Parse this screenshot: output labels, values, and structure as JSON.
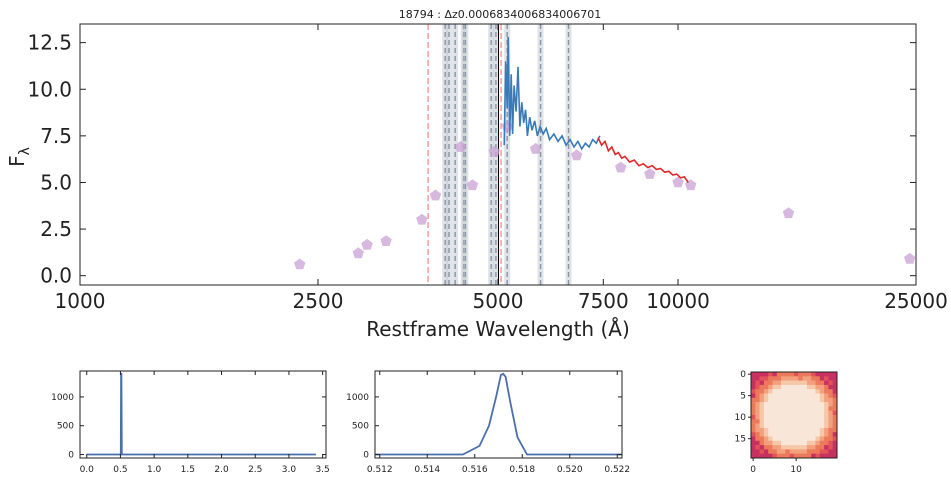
{
  "colors": {
    "spectrum": "#3a7ab8",
    "model": "#e02828",
    "photometry": "#c9a2d4",
    "line_gray": "#b8c0cc",
    "line_red": "#ff9a9a",
    "line_black": "#000000",
    "small_plot": "#4a6faa"
  },
  "chart_data": [
    {
      "type": "scatter",
      "title": "18794 : Δz0.0006834006834006701",
      "xlabel": "Restframe Wavelength (Å)",
      "ylabel": "F",
      "ylabel_sub": "λ",
      "xscale": "log",
      "xlim": [
        1000,
        25000
      ],
      "ylim": [
        -0.5,
        13.5
      ],
      "xtick_labels": [
        "1000",
        "2500",
        "5000",
        "7500",
        "10000",
        "25000"
      ],
      "xtick_values": [
        1000,
        2500,
        5000,
        7500,
        10000,
        25000
      ],
      "ytick_labels": [
        "0.0",
        "2.5",
        "5.0",
        "7.5",
        "10.0",
        "12.5"
      ],
      "ytick_values": [
        0,
        2.5,
        5,
        7.5,
        10,
        12.5
      ],
      "series": [
        {
          "kind": "photometry",
          "marker": "pentagon",
          "points": [
            [
              2330,
              0.6
            ],
            [
              2920,
              1.2
            ],
            [
              3020,
              1.65
            ],
            [
              3250,
              1.85
            ],
            [
              3730,
              3.0
            ],
            [
              3930,
              4.3
            ],
            [
              4330,
              6.9
            ],
            [
              4530,
              4.85
            ],
            [
              4930,
              6.65
            ],
            [
              5180,
              8.0
            ],
            [
              5780,
              6.8
            ],
            [
              6770,
              6.45
            ],
            [
              8020,
              5.8
            ],
            [
              8970,
              5.45
            ],
            [
              10000,
              5.0
            ],
            [
              10500,
              4.85
            ],
            [
              15300,
              3.35
            ],
            [
              24400,
              0.9
            ]
          ]
        },
        {
          "kind": "spectrum",
          "points": [
            [
              5120,
              7.0
            ],
            [
              5150,
              11.5
            ],
            [
              5180,
              9.0
            ],
            [
              5200,
              12.8
            ],
            [
              5230,
              7.5
            ],
            [
              5260,
              10.8
            ],
            [
              5290,
              7.6
            ],
            [
              5320,
              10.2
            ],
            [
              5360,
              8.8
            ],
            [
              5400,
              11.2
            ],
            [
              5440,
              8.0
            ],
            [
              5480,
              9.3
            ],
            [
              5520,
              8.2
            ],
            [
              5560,
              8.9
            ],
            [
              5600,
              7.5
            ],
            [
              5650,
              8.5
            ],
            [
              5700,
              7.8
            ],
            [
              5760,
              8.3
            ],
            [
              5820,
              7.5
            ],
            [
              5880,
              8.0
            ],
            [
              5950,
              7.6
            ],
            [
              6020,
              7.9
            ],
            [
              6100,
              7.3
            ],
            [
              6200,
              7.6
            ],
            [
              6300,
              7.2
            ],
            [
              6400,
              7.5
            ],
            [
              6500,
              7.0
            ],
            [
              6600,
              7.3
            ],
            [
              6700,
              6.9
            ],
            [
              6800,
              7.2
            ],
            [
              6900,
              6.8
            ],
            [
              7000,
              7.1
            ],
            [
              7100,
              6.9
            ],
            [
              7200,
              7.3
            ],
            [
              7300,
              7.1
            ],
            [
              7400,
              7.5
            ]
          ]
        },
        {
          "kind": "model",
          "points": [
            [
              7350,
              7.4
            ],
            [
              7450,
              7.0
            ],
            [
              7550,
              7.2
            ],
            [
              7650,
              6.7
            ],
            [
              7750,
              6.9
            ],
            [
              7850,
              6.5
            ],
            [
              7950,
              6.6
            ],
            [
              8050,
              6.3
            ],
            [
              8150,
              6.4
            ],
            [
              8300,
              6.1
            ],
            [
              8450,
              6.2
            ],
            [
              8600,
              5.9
            ],
            [
              8750,
              6.0
            ],
            [
              8900,
              5.8
            ],
            [
              9050,
              5.9
            ],
            [
              9200,
              5.7
            ],
            [
              9350,
              5.75
            ],
            [
              9500,
              5.55
            ],
            [
              9650,
              5.6
            ],
            [
              9800,
              5.4
            ],
            [
              9950,
              5.45
            ],
            [
              10100,
              5.25
            ],
            [
              10250,
              5.3
            ],
            [
              10400,
              5.0
            ]
          ]
        }
      ],
      "vlines": [
        {
          "x": 3820,
          "style": "red"
        },
        {
          "x": 4080,
          "style": "gray"
        },
        {
          "x": 4140,
          "style": "gray"
        },
        {
          "x": 4240,
          "style": "gray"
        },
        {
          "x": 4380,
          "style": "gray"
        },
        {
          "x": 4410,
          "style": "gray"
        },
        {
          "x": 4870,
          "style": "gray"
        },
        {
          "x": 4960,
          "style": "gray"
        },
        {
          "x": 5010,
          "style": "black"
        },
        {
          "x": 5060,
          "style": "red"
        },
        {
          "x": 5180,
          "style": "gray"
        },
        {
          "x": 5890,
          "style": "gray"
        },
        {
          "x": 6560,
          "style": "gray"
        }
      ]
    },
    {
      "type": "line",
      "xlim": [
        -0.1,
        3.55
      ],
      "ylim": [
        -60,
        1450
      ],
      "xtick_labels": [
        "0.0",
        "0.5",
        "1.0",
        "1.5",
        "2.0",
        "2.5",
        "3.0",
        "3.5"
      ],
      "xtick_values": [
        0,
        0.5,
        1,
        1.5,
        2,
        2.5,
        3,
        3.5
      ],
      "ytick_labels": [
        "0",
        "500",
        "1000"
      ],
      "ytick_values": [
        0,
        500,
        1000
      ],
      "x": [
        0,
        0.505,
        0.51,
        0.515,
        0.52,
        3.4
      ],
      "y": [
        0,
        0,
        1400,
        1400,
        0,
        0
      ]
    },
    {
      "type": "line",
      "xlim": [
        0.5118,
        0.5222
      ],
      "ylim": [
        -60,
        1450
      ],
      "xtick_labels": [
        "0.512",
        "0.514",
        "0.516",
        "0.518",
        "0.520",
        "0.522"
      ],
      "xtick_values": [
        0.512,
        0.514,
        0.516,
        0.518,
        0.52,
        0.522
      ],
      "ytick_labels": [
        "0",
        "500",
        "1000"
      ],
      "ytick_values": [
        0,
        500,
        1000
      ],
      "x": [
        0.5118,
        0.5155,
        0.5162,
        0.5166,
        0.5169,
        0.5171,
        0.5172,
        0.5173,
        0.5175,
        0.5178,
        0.5182,
        0.5222
      ],
      "y": [
        0,
        0,
        150,
        500,
        1000,
        1380,
        1400,
        1350,
        900,
        300,
        0,
        0
      ]
    },
    {
      "type": "heatmap",
      "xtick_labels": [
        "0",
        "10"
      ],
      "xtick_values": [
        0,
        10
      ],
      "ytick_labels": [
        "0",
        "5",
        "10",
        "15"
      ],
      "ytick_values": [
        0,
        5,
        10,
        15
      ],
      "size": 20,
      "palette": [
        "#f8e6d8",
        "#f6c8a8",
        "#f2a07e",
        "#ec7a5a",
        "#e2525a",
        "#c83060"
      ]
    }
  ]
}
